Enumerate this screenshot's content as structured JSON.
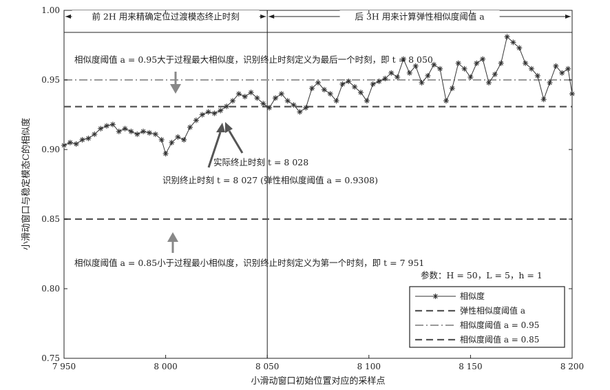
{
  "chart_data": {
    "type": "line",
    "title": "",
    "xlabel": "小滑动窗口初始位置对应的采样点",
    "ylabel": "小滑动窗口与稳定模态C的相似度",
    "xlim": [
      7950,
      8200
    ],
    "ylim": [
      0.75,
      1.0
    ],
    "x_ticks": [
      7950,
      8000,
      8050,
      8100,
      8150,
      8200
    ],
    "x_tick_labels": [
      "7 950",
      "8 000",
      "8 050",
      "8 100",
      "8 150",
      "8 200"
    ],
    "y_ticks": [
      0.75,
      0.8,
      0.85,
      0.9,
      0.95,
      1.0
    ],
    "y_tick_labels": [
      "0.75",
      "0.80",
      "0.85",
      "0.90",
      "0.95",
      "1.00"
    ],
    "grid": false,
    "legend_position": "bottom-right",
    "series": [
      {
        "name": "相似度",
        "style": "solid-star",
        "color": "#333333",
        "x": [
          7950,
          7953,
          7956,
          7959,
          7962,
          7965,
          7968,
          7971,
          7974,
          7977,
          7980,
          7983,
          7986,
          7989,
          7992,
          7995,
          7998,
          8000,
          8003,
          8006,
          8009,
          8012,
          8015,
          8018,
          8021,
          8024,
          8027,
          8030,
          8033,
          8036,
          8039,
          8042,
          8045,
          8048,
          8051,
          8054,
          8057,
          8060,
          8063,
          8066,
          8069,
          8072,
          8075,
          8078,
          8081,
          8084,
          8087,
          8090,
          8093,
          8096,
          8099,
          8102,
          8105,
          8108,
          8111,
          8114,
          8117,
          8120,
          8123,
          8126,
          8129,
          8132,
          8135,
          8138,
          8141,
          8144,
          8147,
          8150,
          8153,
          8156,
          8159,
          8162,
          8165,
          8168,
          8171,
          8174,
          8177,
          8180,
          8183,
          8186,
          8189,
          8192,
          8195,
          8198,
          8200
        ],
        "y": [
          0.903,
          0.905,
          0.904,
          0.907,
          0.908,
          0.911,
          0.915,
          0.917,
          0.918,
          0.913,
          0.915,
          0.913,
          0.911,
          0.913,
          0.912,
          0.911,
          0.907,
          0.897,
          0.905,
          0.909,
          0.907,
          0.916,
          0.921,
          0.925,
          0.927,
          0.926,
          0.928,
          0.931,
          0.935,
          0.94,
          0.938,
          0.941,
          0.937,
          0.933,
          0.93,
          0.937,
          0.94,
          0.935,
          0.932,
          0.927,
          0.93,
          0.944,
          0.948,
          0.943,
          0.94,
          0.935,
          0.947,
          0.949,
          0.945,
          0.941,
          0.935,
          0.947,
          0.949,
          0.951,
          0.955,
          0.952,
          0.965,
          0.955,
          0.96,
          0.948,
          0.953,
          0.961,
          0.958,
          0.935,
          0.944,
          0.962,
          0.958,
          0.952,
          0.962,
          0.965,
          0.948,
          0.954,
          0.962,
          0.981,
          0.977,
          0.973,
          0.962,
          0.958,
          0.953,
          0.936,
          0.948,
          0.96,
          0.955,
          0.958,
          0.94
        ]
      },
      {
        "name": "弹性相似度阈值 a",
        "style": "dashed",
        "color": "#555555",
        "y": 0.9308
      },
      {
        "name": "相似度阈值 a = 0.95",
        "style": "dashdot",
        "color": "#999999",
        "y": 0.95
      },
      {
        "name": "相似度阈值 a = 0.85",
        "style": "dashed",
        "color": "#555555",
        "y": 0.85
      }
    ],
    "vline_x": 8050,
    "header": {
      "left": "前 2H 用来精确定位过渡模态终止时刻",
      "right": "后 3H 用来计算弹性相似度阈值 a"
    },
    "annotations": {
      "top_note": "相似度阈值 a = 0.95大于过程最大相似度，识别终止时刻定义为最后一个时刻，即 t = 8 050",
      "actual_end": "实际终止时刻 t = 8 028",
      "identified_end": "识别终止时刻 t = 8 027 (弹性相似度阈值 a = 0.9308)",
      "bottom_note": "相似度阈值 a = 0.85小于过程最小相似度，识别终止时刻定义为第一个时刻，即 t = 7 951",
      "params": "参数：H = 50，L = 5，h = 1"
    }
  }
}
